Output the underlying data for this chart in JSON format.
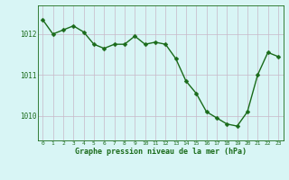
{
  "x": [
    0,
    1,
    2,
    3,
    4,
    5,
    6,
    7,
    8,
    9,
    10,
    11,
    12,
    13,
    14,
    15,
    16,
    17,
    18,
    19,
    20,
    21,
    22,
    23
  ],
  "y": [
    1012.35,
    1012.0,
    1012.1,
    1012.2,
    1012.05,
    1011.75,
    1011.65,
    1011.75,
    1011.75,
    1011.95,
    1011.75,
    1011.8,
    1011.75,
    1011.4,
    1010.85,
    1010.55,
    1010.1,
    1009.95,
    1009.8,
    1009.75,
    1010.1,
    1011.0,
    1011.55,
    1011.45
  ],
  "line_color": "#1a6b1a",
  "marker_color": "#1a6b1a",
  "bg_color": "#d8f5f5",
  "grid_color": "#c8b8c8",
  "xlabel": "Graphe pression niveau de la mer (hPa)",
  "xlabel_color": "#1a6b1a",
  "tick_color": "#1a6b1a",
  "ylim": [
    1009.4,
    1012.7
  ],
  "yticks": [
    1010,
    1011,
    1012
  ],
  "xticks": [
    0,
    1,
    2,
    3,
    4,
    5,
    6,
    7,
    8,
    9,
    10,
    11,
    12,
    13,
    14,
    15,
    16,
    17,
    18,
    19,
    20,
    21,
    22,
    23
  ],
  "xtick_labels": [
    "0",
    "1",
    "2",
    "3",
    "4",
    "5",
    "6",
    "7",
    "8",
    "9",
    "10",
    "11",
    "12",
    "13",
    "14",
    "15",
    "16",
    "17",
    "18",
    "19",
    "20",
    "21",
    "22",
    "23"
  ],
  "marker_size": 2.5,
  "line_width": 1.0
}
